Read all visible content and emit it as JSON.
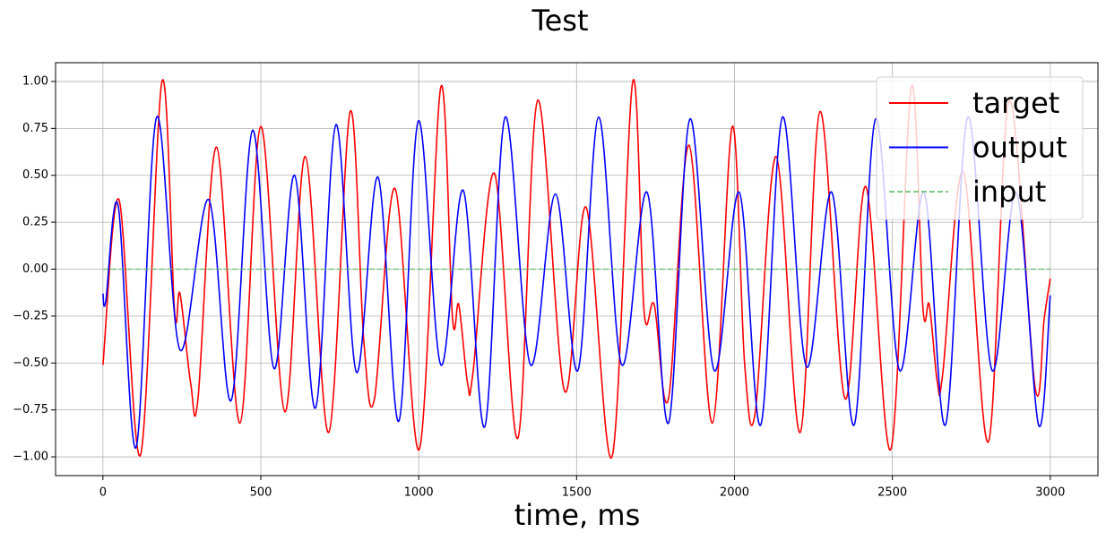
{
  "chart_data": {
    "type": "line",
    "title": "Test",
    "x_label": "time, ms",
    "xlim": [
      -150,
      3151
    ],
    "ylim": [
      -1.1,
      1.1
    ],
    "xticks": [
      0,
      500,
      1000,
      1500,
      2000,
      2500,
      3000
    ],
    "yticks": [
      {
        "value": -1,
        "label": "−1.00"
      },
      {
        "value": -0.75,
        "label": "−0.75"
      },
      {
        "value": -0.5,
        "label": "−0.50"
      },
      {
        "value": -0.25,
        "label": "−0.25"
      },
      {
        "value": 0,
        "label": "0.00"
      },
      {
        "value": 0.25,
        "label": "0.25"
      },
      {
        "value": 0.5,
        "label": "0.50"
      },
      {
        "value": 0.75,
        "label": "0.75"
      },
      {
        "value": 1,
        "label": "1.00"
      }
    ],
    "grid": true,
    "legend": "upper right",
    "series": [
      {
        "name": "target",
        "color": "#ff0000",
        "x": [
          0,
          51,
          119,
          187,
          227,
          244,
          278,
          301,
          360,
          434,
          500,
          576,
          641,
          715,
          783,
          826,
          860,
          925,
          1002,
          1070,
          1107,
          1127,
          1155,
          1172,
          1240,
          1314,
          1377,
          1462,
          1530,
          1612,
          1678,
          1714,
          1746,
          1791,
          1856,
          1930,
          1993,
          2032,
          2066,
          2132,
          2208,
          2271,
          2350,
          2416,
          2495,
          2560,
          2597,
          2617,
          2643,
          2660,
          2725,
          2804,
          2870,
          2952,
          2981,
          3000
        ],
        "values": [
          -0.51,
          0.37,
          -0.99,
          1.0,
          -0.23,
          -0.13,
          -0.61,
          -0.69,
          0.65,
          -0.82,
          0.76,
          -0.76,
          0.6,
          -0.87,
          0.84,
          -0.38,
          -0.69,
          0.43,
          -0.96,
          0.97,
          -0.26,
          -0.19,
          -0.61,
          -0.55,
          0.51,
          -0.9,
          0.9,
          -0.65,
          0.33,
          -1.0,
          1.0,
          -0.23,
          -0.19,
          -0.69,
          0.66,
          -0.82,
          0.76,
          -0.5,
          -0.76,
          0.6,
          -0.87,
          0.84,
          -0.69,
          0.44,
          -0.96,
          0.97,
          -0.21,
          -0.19,
          -0.61,
          -0.55,
          0.52,
          -0.92,
          0.9,
          -0.63,
          -0.26,
          -0.05
        ]
      },
      {
        "name": "output",
        "color": "#0000ff",
        "x": [
          0,
          9,
          48,
          105,
          170,
          244,
          335,
          406,
          474,
          542,
          607,
          673,
          738,
          803,
          871,
          937,
          999,
          1070,
          1141,
          1209,
          1274,
          1354,
          1433,
          1504,
          1570,
          1643,
          1723,
          1791,
          1859,
          1936,
          2015,
          2083,
          2152,
          2228,
          2308,
          2379,
          2447,
          2523,
          2600,
          2668,
          2739,
          2816,
          2892,
          2963,
          3000
        ],
        "values": [
          -0.13,
          -0.17,
          0.34,
          -0.95,
          0.81,
          -0.43,
          0.37,
          -0.7,
          0.74,
          -0.53,
          0.5,
          -0.74,
          0.77,
          -0.55,
          0.49,
          -0.81,
          0.79,
          -0.51,
          0.42,
          -0.84,
          0.81,
          -0.51,
          0.4,
          -0.54,
          0.81,
          -0.51,
          0.41,
          -0.82,
          0.8,
          -0.54,
          0.41,
          -0.83,
          0.81,
          -0.52,
          0.41,
          -0.83,
          0.8,
          -0.54,
          0.41,
          -0.83,
          0.81,
          -0.54,
          0.41,
          -0.83,
          -0.14
        ]
      },
      {
        "name": "input",
        "color": "#66bb66",
        "dashed": true,
        "x": [
          0,
          3000
        ],
        "values": [
          0,
          0
        ]
      }
    ]
  }
}
